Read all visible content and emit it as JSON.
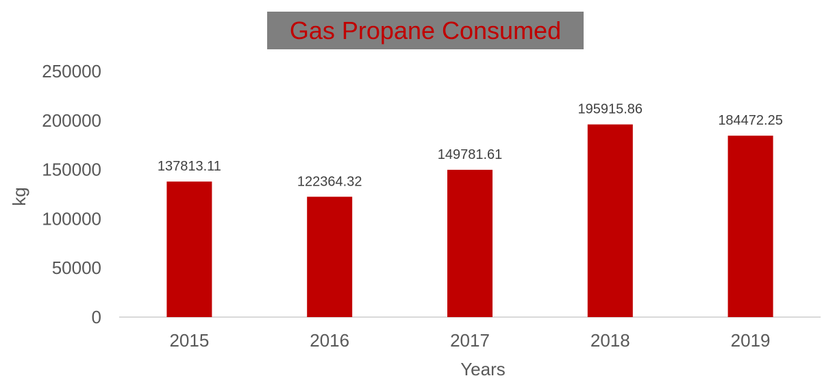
{
  "chart_data": {
    "type": "bar",
    "title": "Gas Propane Consumed",
    "xlabel": "Years",
    "ylabel": "kg",
    "categories": [
      "2015",
      "2016",
      "2017",
      "2018",
      "2019"
    ],
    "values": [
      137813.11,
      122364.32,
      149781.61,
      195915.86,
      184472.25
    ],
    "data_labels": [
      "137813.11",
      "122364.32",
      "149781.61",
      "195915.86",
      "184472.25"
    ],
    "y_ticks": [
      "0",
      "50000",
      "100000",
      "150000",
      "200000",
      "250000"
    ],
    "ylim": [
      0,
      250000
    ],
    "grid": false,
    "legend": "none"
  },
  "colors": {
    "bar": "#c00000",
    "title_text": "#c00000",
    "title_box": "#7f7f7f",
    "tick_text": "#595959",
    "data_label_text": "#404040",
    "axis_line": "#d9d9d9"
  }
}
